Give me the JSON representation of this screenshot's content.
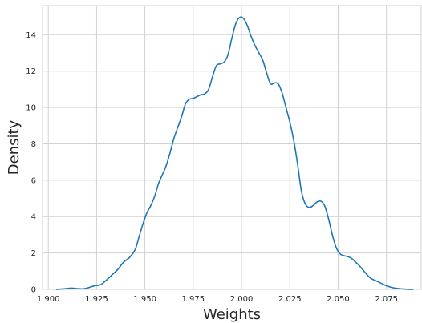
{
  "chart_data": {
    "type": "line",
    "title": "",
    "xlabel": "Weights",
    "ylabel": "Density",
    "xlim": [
      1.897,
      2.093
    ],
    "ylim": [
      0,
      15.6
    ],
    "xticks": [
      1.9,
      1.925,
      1.95,
      1.975,
      2.0,
      2.025,
      2.05,
      2.075
    ],
    "xtick_labels": [
      "1.900",
      "1.925",
      "1.950",
      "1.975",
      "2.000",
      "2.025",
      "2.050",
      "2.075"
    ],
    "yticks": [
      0,
      2,
      4,
      6,
      8,
      10,
      12,
      14
    ],
    "ytick_labels": [
      "0",
      "2",
      "4",
      "6",
      "8",
      "10",
      "12",
      "14"
    ],
    "grid": true,
    "line_color": "#1f77b4",
    "series": [
      {
        "x": [
          1.904,
          1.908,
          1.912,
          1.915,
          1.918,
          1.921,
          1.924,
          1.927,
          1.93,
          1.933,
          1.936,
          1.939,
          1.942,
          1.945,
          1.947,
          1.949,
          1.951,
          1.953,
          1.955,
          1.957,
          1.959,
          1.961,
          1.963,
          1.965,
          1.967,
          1.969,
          1.971,
          1.973,
          1.975,
          1.977,
          1.979,
          1.981,
          1.983,
          1.985,
          1.987,
          1.989,
          1.991,
          1.993,
          1.995,
          1.997,
          1.999,
          2.001,
          2.003,
          2.005,
          2.007,
          2.009,
          2.011,
          2.013,
          2.015,
          2.017,
          2.019,
          2.021,
          2.023,
          2.025,
          2.027,
          2.029,
          2.031,
          2.033,
          2.035,
          2.037,
          2.039,
          2.041,
          2.043,
          2.045,
          2.047,
          2.049,
          2.051,
          2.053,
          2.055,
          2.057,
          2.059,
          2.061,
          2.063,
          2.065,
          2.067,
          2.069,
          2.072,
          2.075,
          2.078,
          2.081,
          2.084,
          2.087,
          2.089
        ],
        "y": [
          0.0,
          0.03,
          0.07,
          0.04,
          0.03,
          0.1,
          0.2,
          0.25,
          0.5,
          0.8,
          1.1,
          1.5,
          1.75,
          2.2,
          2.9,
          3.6,
          4.2,
          4.6,
          5.1,
          5.8,
          6.3,
          6.8,
          7.5,
          8.3,
          8.9,
          9.5,
          10.2,
          10.45,
          10.5,
          10.6,
          10.7,
          10.75,
          11.0,
          11.7,
          12.3,
          12.4,
          12.5,
          12.9,
          13.8,
          14.6,
          14.95,
          14.9,
          14.5,
          13.9,
          13.4,
          13.0,
          12.6,
          11.9,
          11.3,
          11.35,
          11.3,
          10.8,
          10.0,
          9.2,
          8.2,
          6.9,
          5.4,
          4.7,
          4.5,
          4.6,
          4.8,
          4.85,
          4.6,
          3.9,
          3.0,
          2.3,
          1.95,
          1.85,
          1.8,
          1.7,
          1.5,
          1.3,
          1.05,
          0.8,
          0.6,
          0.5,
          0.35,
          0.2,
          0.1,
          0.05,
          0.02,
          0.0,
          0.0
        ]
      }
    ]
  }
}
